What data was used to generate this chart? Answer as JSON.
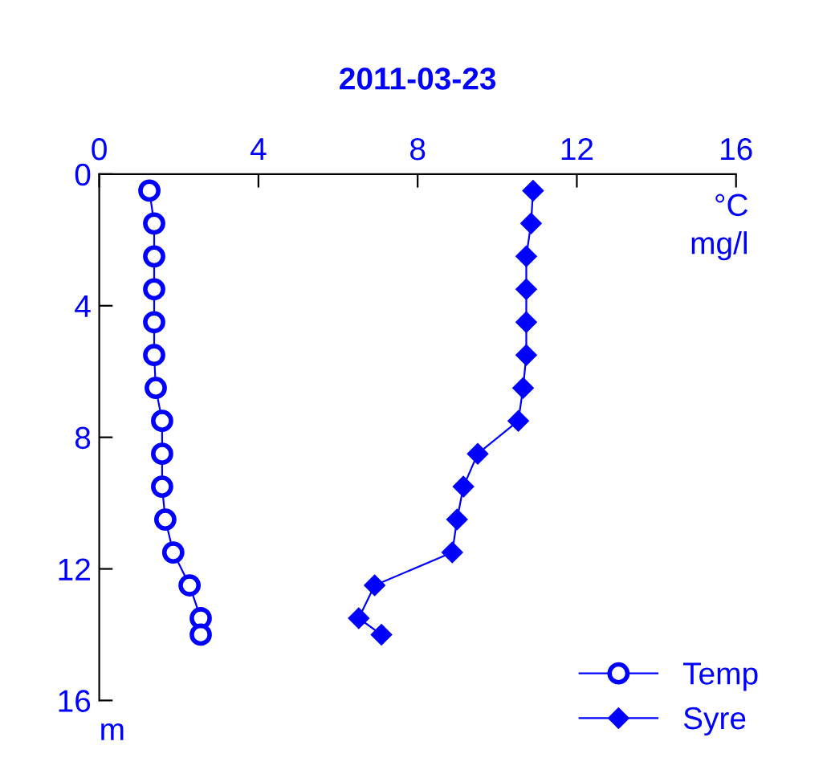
{
  "chart_data": {
    "type": "line",
    "title": "2011-03-23",
    "xlabel": "°C\nmg/l",
    "annotations": [
      "m"
    ],
    "xlim": [
      0,
      16
    ],
    "xticks": [
      0,
      4,
      8,
      12,
      16
    ],
    "ylim": [
      16,
      0
    ],
    "yticks": [
      0,
      4,
      8,
      12,
      16
    ],
    "grid": false,
    "legend": "bottom right",
    "line_style": "solid",
    "series": [
      {
        "name": "Temp",
        "color": "#0000ff",
        "marker": "circle",
        "x": [
          1.26,
          1.38,
          1.38,
          1.38,
          1.38,
          1.38,
          1.42,
          1.58,
          1.58,
          1.58,
          1.66,
          1.86,
          2.27,
          2.55,
          2.55
        ],
        "values": [
          0.5,
          1.5,
          2.5,
          3.5,
          4.5,
          5.5,
          6.5,
          7.5,
          8.5,
          9.5,
          10.5,
          11.5,
          12.5,
          13.5,
          14.0
        ]
      },
      {
        "name": "Syre",
        "color": "#0000ff",
        "marker": "diamond",
        "x": [
          10.9,
          10.85,
          10.73,
          10.73,
          10.73,
          10.73,
          10.65,
          10.53,
          9.51,
          9.15,
          8.99,
          8.87,
          6.92,
          6.52,
          7.09
        ],
        "values": [
          0.5,
          1.5,
          2.5,
          3.5,
          4.5,
          5.5,
          6.5,
          7.5,
          8.5,
          9.5,
          10.5,
          11.5,
          12.5,
          13.5,
          14.0
        ]
      }
    ]
  }
}
